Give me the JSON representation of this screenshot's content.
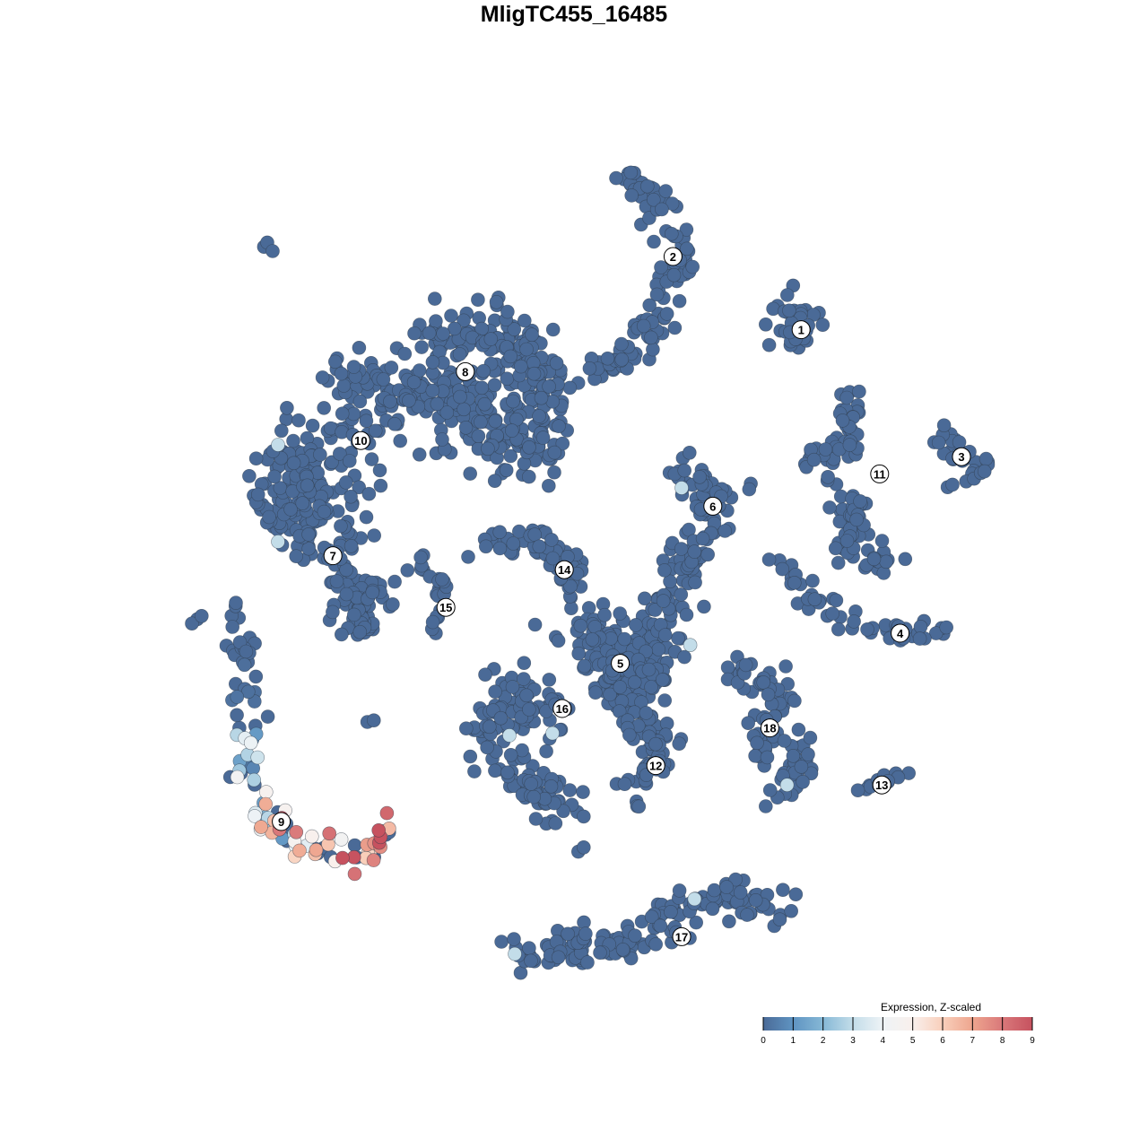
{
  "chart_data": {
    "type": "scatter",
    "title": "MligTC455_16485",
    "xlabel": "",
    "ylabel": "",
    "xlim": [
      -53.3,
      53.3
    ],
    "ylim": [
      -53.3,
      53.3
    ],
    "grid": false,
    "legend": {
      "title": "Expression, Z-scaled",
      "placement": "bottom-right",
      "ticks": [
        "0",
        "1",
        "2",
        "3",
        "4",
        "5",
        "6",
        "7",
        "8",
        "9"
      ],
      "range": [
        0,
        9
      ],
      "colors": [
        "#4a6a97",
        "#5f94c2",
        "#86b8d6",
        "#c3dde9",
        "#eef3f6",
        "#f9f0ec",
        "#f9cfbb",
        "#eea58e",
        "#d9787a",
        "#c6525f"
      ]
    },
    "point_stroke": "#2f3a48",
    "clusters": [
      {
        "label": "1",
        "center": [
          21.1,
          22.7
        ],
        "path": [
          [
            19.2,
            25.4
          ],
          [
            21.3,
            21.7
          ],
          [
            19.5,
            22.5
          ],
          [
            22.5,
            23
          ]
        ],
        "n": 40,
        "spread": 1.6,
        "expr": [
          0,
          0,
          0,
          0
        ]
      },
      {
        "label": "2",
        "center": [
          9.2,
          29.5
        ],
        "path": [
          [
            4.2,
            36.7
          ],
          [
            8.3,
            34.2
          ],
          [
            10,
            29.2
          ],
          [
            8.3,
            24.2
          ],
          [
            5,
            20
          ],
          [
            2.5,
            18.8
          ]
        ],
        "n": 110,
        "spread": 1.4,
        "expr": [
          0,
          0,
          0,
          0,
          0,
          0
        ]
      },
      {
        "label": "3",
        "center": [
          36,
          10.9
        ],
        "path": [
          [
            32.5,
            15.8
          ],
          [
            35,
            11.7
          ],
          [
            38.3,
            10
          ],
          [
            34.2,
            8.8
          ]
        ],
        "n": 30,
        "spread": 0.9,
        "expr": [
          0,
          0,
          0,
          0
        ]
      },
      {
        "label": "4",
        "center": [
          30.3,
          -5.5
        ],
        "path": [
          [
            18.3,
            2.5
          ],
          [
            21.7,
            -2.5
          ],
          [
            26.7,
            -5
          ],
          [
            34.6,
            -5.4
          ]
        ],
        "n": 50,
        "spread": 0.9,
        "expr": [
          0,
          0,
          0,
          0
        ]
      },
      {
        "label": "5",
        "center": [
          4.3,
          -8.3
        ],
        "path": [
          [
            0.8,
            -4.2
          ],
          [
            5,
            -10
          ],
          [
            7.5,
            -6.7
          ],
          [
            3,
            -7
          ],
          [
            6,
            -12
          ]
        ],
        "n": 240,
        "spread": 2.6,
        "expr": [
          0,
          0,
          0,
          0,
          0
        ]
      },
      {
        "label": "6",
        "center": [
          12.9,
          6.3
        ],
        "path": [
          [
            10,
            9.2
          ],
          [
            13.3,
            7.5
          ],
          [
            11.7,
            3.3
          ],
          [
            10,
            -0.8
          ],
          [
            8.3,
            -4.2
          ]
        ],
        "n": 110,
        "spread": 1.8,
        "expr": [
          0,
          0,
          0,
          0,
          0
        ]
      },
      {
        "label": "7",
        "center": [
          -22.4,
          1.7
        ],
        "path": [
          [
            -28.3,
            5
          ],
          [
            -22.5,
            3.3
          ],
          [
            -20,
            -5
          ],
          [
            -18.3,
            -1.7
          ]
        ],
        "n": 130,
        "spread": 2.0,
        "expr": [
          0,
          0,
          0,
          0
        ]
      },
      {
        "label": "8",
        "center": [
          -10.1,
          18.8
        ],
        "path": [
          [
            -15,
            21.7
          ],
          [
            -6.7,
            22.5
          ],
          [
            -3.3,
            18.3
          ],
          [
            -4.2,
            10.8
          ],
          [
            -10,
            15
          ],
          [
            -13,
            18
          ]
        ],
        "n": 330,
        "spread": 2.8,
        "expr": [
          0,
          0,
          0,
          0,
          0,
          0
        ]
      },
      {
        "label": "9",
        "center": [
          -27.2,
          -23
        ],
        "path": [
          [
            -30.8,
            -2.5
          ],
          [
            -30.8,
            -10
          ],
          [
            -30.4,
            -18.3
          ],
          [
            -28.3,
            -23.3
          ],
          [
            -24,
            -25.5
          ],
          [
            -20,
            -26.7
          ],
          [
            -17.5,
            -23.8
          ]
        ],
        "n": 110,
        "spread": 1.2,
        "expr": [
          0,
          0,
          2,
          4,
          6,
          8,
          7
        ]
      },
      {
        "label": "10",
        "center": [
          -19.8,
          12.4
        ],
        "path": [
          [
            -21.7,
            18.3
          ],
          [
            -15.8,
            16.7
          ],
          [
            -25.8,
            11.7
          ],
          [
            -28.3,
            6.7
          ],
          [
            -20,
            10
          ]
        ],
        "n": 200,
        "spread": 2.4,
        "expr": [
          0,
          0,
          0,
          0,
          0
        ]
      },
      {
        "label": "11",
        "center": [
          28.4,
          9.3
        ],
        "path": [
          [
            25,
            16.7
          ],
          [
            25.8,
            11.7
          ],
          [
            21.7,
            10.8
          ],
          [
            26.7,
            5.8
          ],
          [
            25,
            2.5
          ],
          [
            30,
            0.8
          ]
        ],
        "n": 110,
        "spread": 1.2,
        "expr": [
          0,
          0,
          0,
          0,
          0,
          0
        ]
      },
      {
        "label": "12",
        "center": [
          7.6,
          -17.8
        ],
        "path": [
          [
            5,
            -14.2
          ],
          [
            8.3,
            -15.8
          ],
          [
            5.8,
            -20
          ]
        ],
        "n": 60,
        "spread": 1.5,
        "expr": [
          0,
          0,
          0
        ]
      },
      {
        "label": "13",
        "center": [
          28.6,
          -19.6
        ],
        "path": [
          [
            26.7,
            -20
          ],
          [
            30.8,
            -18.5
          ]
        ],
        "n": 14,
        "spread": 0.6,
        "expr": [
          0,
          0
        ]
      },
      {
        "label": "14",
        "center": [
          -0.9,
          0.4
        ],
        "path": [
          [
            -9.2,
            2.1
          ],
          [
            -3.3,
            3.3
          ],
          [
            0,
            -0.8
          ],
          [
            -1.5,
            2
          ]
        ],
        "n": 60,
        "spread": 1.2,
        "expr": [
          0,
          0,
          0,
          0
        ]
      },
      {
        "label": "15",
        "center": [
          -11.9,
          -3.1
        ],
        "path": [
          [
            -15,
            1.3
          ],
          [
            -12.1,
            -0.8
          ],
          [
            -13.3,
            -5.4
          ]
        ],
        "n": 22,
        "spread": 0.7,
        "expr": [
          0,
          0,
          0
        ]
      },
      {
        "label": "16",
        "center": [
          -1.1,
          -12.5
        ],
        "path": [
          [
            -6.7,
            -10
          ],
          [
            -1.7,
            -12.5
          ],
          [
            -9.2,
            -14.2
          ],
          [
            -4.2,
            -19.2
          ],
          [
            -1,
            -22
          ]
        ],
        "n": 150,
        "spread": 1.9,
        "expr": [
          0,
          0,
          0,
          0,
          0
        ]
      },
      {
        "label": "17",
        "center": [
          10,
          -33.7
        ],
        "path": [
          [
            -5.4,
            -35
          ],
          [
            0.8,
            -35
          ],
          [
            6.7,
            -33.3
          ],
          [
            13.3,
            -30
          ],
          [
            20.8,
            -30.8
          ]
        ],
        "n": 150,
        "spread": 1.6,
        "expr": [
          0,
          0,
          0,
          0,
          0
        ]
      },
      {
        "label": "18",
        "center": [
          18.2,
          -14.3
        ],
        "path": [
          [
            14.2,
            -9.2
          ],
          [
            19.2,
            -10.8
          ],
          [
            16.7,
            -15.8
          ],
          [
            21.7,
            -16.7
          ],
          [
            18.3,
            -20.8
          ]
        ],
        "n": 100,
        "spread": 1.4,
        "expr": [
          0,
          0,
          0,
          0,
          0
        ]
      }
    ],
    "outliers": [
      [
        -28.8,
        30.4
      ],
      [
        -28.5,
        30.8
      ],
      [
        -28,
        30
      ],
      [
        -35,
        -4.2
      ],
      [
        -35.5,
        -4.6
      ],
      [
        -34.6,
        -3.9
      ],
      [
        -19.2,
        -13.75
      ],
      [
        -18.6,
        -13.6
      ],
      [
        0.4,
        -25.8
      ],
      [
        0.9,
        -25.4
      ]
    ],
    "light_points": [
      [
        -27.5,
        12
      ],
      [
        -27.5,
        3
      ],
      [
        10,
        8
      ],
      [
        10.8,
        -6.6
      ],
      [
        -6,
        -15
      ],
      [
        -2,
        -14.8
      ],
      [
        19.8,
        -19.6
      ],
      [
        11.2,
        -30.2
      ],
      [
        -5.5,
        -35.3
      ]
    ]
  }
}
